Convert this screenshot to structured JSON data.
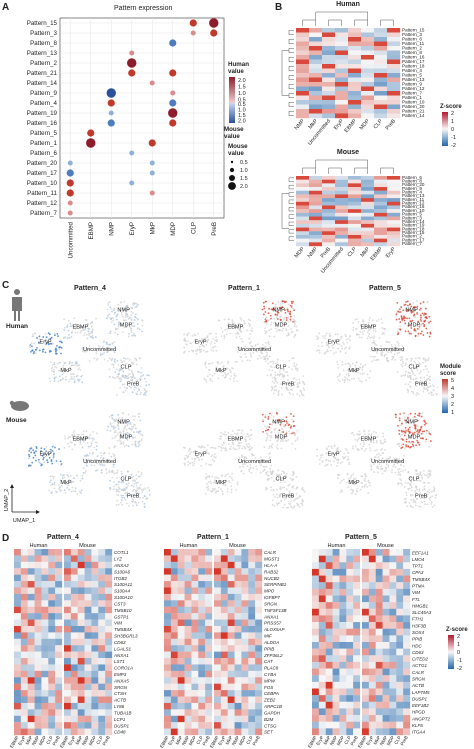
{
  "panelA": {
    "letter": "A",
    "title": "Pattern expression",
    "rows": [
      "Pattern_15",
      "Pattern_3",
      "Pattern_8",
      "Pattern_13",
      "Pattern_2",
      "Pattern_21",
      "Pattern_14",
      "Pattern_9",
      "Pattern_4",
      "Pattern_19",
      "Pattern_16",
      "Pattern_5",
      "Pattern_1",
      "Pattern_6",
      "Pattern_20",
      "Pattern_17",
      "Pattern_10",
      "Pattern_11",
      "Pattern_12",
      "Pattern_7"
    ],
    "cols": [
      "Uncommitted",
      "EBMP",
      "NMP",
      "EryP",
      "MkP",
      "MDP",
      "CLP",
      "PreB"
    ],
    "human_legend_title": "Human\nvalue",
    "human_ticks": [
      "2.0",
      "1.5",
      "1.0",
      "0.5"
    ],
    "mouse_legend_title": "Mouse\nvalue",
    "mouse_ticks": [
      "0.5",
      "1.0",
      "1.5",
      "2.0"
    ],
    "size_legend_title": "Mouse\nvalue"
  },
  "panelB": {
    "letter": "B",
    "human_title": "Human",
    "mouse_title": "Mouse",
    "human_rows": [
      "Pattern_15",
      "Pattern_3",
      "Pattern_6",
      "Pattern_11",
      "Pattern_2",
      "Pattern_8",
      "Pattern_16",
      "Pattern_17",
      "Pattern_18",
      "Pattern_4",
      "Pattern_5",
      "Pattern_13",
      "Pattern_9",
      "Pattern_12",
      "Pattern_7",
      "Pattern_1",
      "Pattern_10",
      "Pattern_20",
      "Pattern_21",
      "Pattern_14"
    ],
    "human_cols": [
      "NMP",
      "MkP",
      "Uncommitted",
      "EryP",
      "EBMP",
      "MDP",
      "CLP",
      "PreB"
    ],
    "mouse_rows": [
      "Pattern_6",
      "Pattern_8",
      "Pattern_20",
      "Pattern_9",
      "Pattern_4",
      "Pattern_13",
      "Pattern_11",
      "Pattern_12",
      "Pattern_16",
      "Pattern_10",
      "Pattern_5",
      "Pattern_3",
      "Pattern_14",
      "Pattern_19",
      "Pattern_18",
      "Pattern_15",
      "Pattern_2",
      "Pattern_17",
      "Pattern_7"
    ],
    "mouse_cols": [
      "MDP",
      "NMP",
      "PreB",
      "Uncommitted",
      "CLP",
      "MkP",
      "EBMP",
      "EryP"
    ],
    "zscore_title": "Z-score",
    "zscore_ticks": [
      "2",
      "1",
      "0",
      "-1",
      "-2"
    ]
  },
  "panelC": {
    "letter": "C",
    "patterns": [
      "Pattern_4",
      "Pattern_1",
      "Pattern_5"
    ],
    "human_label": "Human",
    "mouse_label": "Mouse",
    "clusters": [
      "NMP",
      "EBMP",
      "MDP",
      "EryP",
      "Uncommitted",
      "MkP",
      "CLP",
      "PreB"
    ],
    "module_title": "Module\nscore",
    "module_ticks": [
      "5",
      "4",
      "3",
      "2",
      "1"
    ],
    "umap_x": "UMAP_1",
    "umap_y": "UMAP_2"
  },
  "panelD": {
    "letter": "D",
    "blocks": [
      {
        "title": "Pattern_4",
        "genes": [
          "COTL1",
          "LYZ",
          "ANXA2",
          "S100A6",
          "ITGB2",
          "S100A11",
          "S100A4",
          "S100A10",
          "CST3",
          "TMSB10",
          "GSTP1",
          "VIM",
          "TMSB4X",
          "SH3BGRL3",
          "CD63",
          "LGALS1",
          "ANXA1",
          "LST1",
          "CORO1A",
          "EMP3",
          "ANXA5",
          "SRGN",
          "CTSH",
          "ACTB",
          "LY86",
          "TUBA1B",
          "LCP1",
          "DUSP1",
          "CD48"
        ],
        "cols": [
          "EBMP",
          "EryP",
          "MkP",
          "NMP",
          "MDP",
          "CLP",
          "PreB"
        ]
      },
      {
        "title": "Pattern_1",
        "genes": [
          "CALR",
          "MGST1",
          "HLA-A",
          "RAB32",
          "NUCB2",
          "SERPINB1",
          "MPO",
          "IGFBP7",
          "SRGN",
          "TNFSF13B",
          "ANXA1",
          "PRSS57",
          "ALOX5AP",
          "MIF",
          "ALDOA",
          "PPIB",
          "ZFP36L2",
          "CAT",
          "PLAC8",
          "CYBA",
          "MPW",
          "FOS",
          "CEBPA",
          "ZEB2",
          "ARPC1B",
          "GAPDH",
          "B2M",
          "CTSG",
          "SET"
        ],
        "cols": [
          "EBMP",
          "EryP",
          "MkP",
          "NMP",
          "MDP",
          "CLP",
          "PreB"
        ]
      },
      {
        "title": "Pattern_5",
        "genes": [
          "EEF1A1",
          "LMO4",
          "TPT1",
          "CPA3",
          "TMSB4X",
          "PTMA",
          "VIM",
          "FTL",
          "HMGB1",
          "SLC45A3",
          "FTH1",
          "H3F3B",
          "SOX4",
          "PPIB",
          "HDC",
          "CD63",
          "CITED2",
          "ACTG1",
          "CALR",
          "SRGN",
          "ACTB",
          "LAPTM5",
          "DUSP1",
          "EEF1B2",
          "HPGD",
          "ANGPT2",
          "KLF6",
          "ITGA4"
        ],
        "cols": [
          "EBMP",
          "EryP",
          "MkP",
          "NMP",
          "MDP",
          "CLP",
          "PreB"
        ]
      }
    ],
    "human_label": "Human",
    "mouse_label": "Mouse",
    "zscore_title": "Z-score",
    "zscore_ticks": [
      "2",
      "1",
      "0",
      "-1",
      "-2"
    ]
  },
  "colors": {
    "red": "#b2182b",
    "blue": "#2166ac",
    "white": "#f7f7f7"
  }
}
